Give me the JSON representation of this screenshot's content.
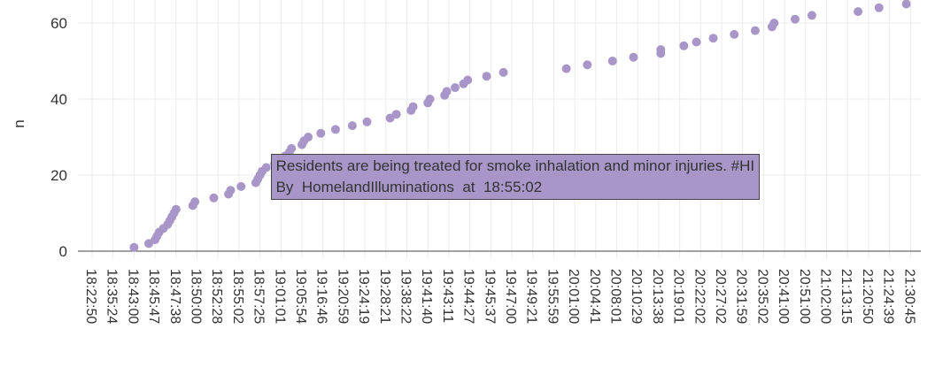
{
  "chart_data": {
    "type": "scatter",
    "ylabel": "n",
    "y_ticks": [
      0,
      20,
      40,
      60
    ],
    "ylim": [
      -2,
      66
    ],
    "x_ticks": [
      "18:22:50",
      "18:35:24",
      "18:43:00",
      "18:45:47",
      "18:47:38",
      "18:50:00",
      "18:52:28",
      "18:55:02",
      "18:57:25",
      "19:01:01",
      "19:05:54",
      "19:16:46",
      "19:20:59",
      "19:24:19",
      "19:28:21",
      "19:38:22",
      "19:41:40",
      "19:43:11",
      "19:44:27",
      "19:45:37",
      "19:47:00",
      "19:49:21",
      "19:55:59",
      "20:01:00",
      "20:04:41",
      "20:08:01",
      "20:10:29",
      "20:13:38",
      "20:19:01",
      "20:22:02",
      "20:27:02",
      "20:31:59",
      "20:35:02",
      "20:41:00",
      "20:51:00",
      "21:02:00",
      "21:13:15",
      "21:20:50",
      "21:24:39",
      "21:30:45"
    ],
    "marker_color": "#a896c9",
    "points": [
      {
        "x": 2.0,
        "y": 1
      },
      {
        "x": 2.7,
        "y": 2
      },
      {
        "x": 3.0,
        "y": 3
      },
      {
        "x": 3.1,
        "y": 4
      },
      {
        "x": 3.2,
        "y": 5
      },
      {
        "x": 3.4,
        "y": 6
      },
      {
        "x": 3.6,
        "y": 7
      },
      {
        "x": 3.7,
        "y": 8
      },
      {
        "x": 3.8,
        "y": 9
      },
      {
        "x": 3.9,
        "y": 10
      },
      {
        "x": 4.0,
        "y": 11
      },
      {
        "x": 4.8,
        "y": 12
      },
      {
        "x": 4.9,
        "y": 13
      },
      {
        "x": 5.8,
        "y": 14
      },
      {
        "x": 6.5,
        "y": 15
      },
      {
        "x": 6.6,
        "y": 16
      },
      {
        "x": 7.1,
        "y": 17
      },
      {
        "x": 7.8,
        "y": 18
      },
      {
        "x": 7.9,
        "y": 19
      },
      {
        "x": 8.0,
        "y": 20
      },
      {
        "x": 8.1,
        "y": 21
      },
      {
        "x": 8.3,
        "y": 22
      },
      {
        "x": 8.7,
        "y": 23
      },
      {
        "x": 9.0,
        "y": 24
      },
      {
        "x": 9.2,
        "y": 25
      },
      {
        "x": 9.4,
        "y": 26
      },
      {
        "x": 9.5,
        "y": 27
      },
      {
        "x": 10.0,
        "y": 28
      },
      {
        "x": 10.1,
        "y": 29
      },
      {
        "x": 10.3,
        "y": 30
      },
      {
        "x": 10.9,
        "y": 31
      },
      {
        "x": 11.6,
        "y": 32
      },
      {
        "x": 12.4,
        "y": 33
      },
      {
        "x": 13.1,
        "y": 34
      },
      {
        "x": 14.2,
        "y": 35
      },
      {
        "x": 14.5,
        "y": 36
      },
      {
        "x": 15.2,
        "y": 37
      },
      {
        "x": 15.3,
        "y": 38
      },
      {
        "x": 16.0,
        "y": 39
      },
      {
        "x": 16.1,
        "y": 40
      },
      {
        "x": 16.8,
        "y": 41
      },
      {
        "x": 16.9,
        "y": 42
      },
      {
        "x": 17.3,
        "y": 43
      },
      {
        "x": 17.7,
        "y": 44
      },
      {
        "x": 17.9,
        "y": 45
      },
      {
        "x": 18.8,
        "y": 46
      },
      {
        "x": 19.6,
        "y": 47
      },
      {
        "x": 22.6,
        "y": 48
      },
      {
        "x": 23.6,
        "y": 49
      },
      {
        "x": 24.8,
        "y": 50
      },
      {
        "x": 25.8,
        "y": 51
      },
      {
        "x": 27.1,
        "y": 52
      },
      {
        "x": 27.1,
        "y": 53
      },
      {
        "x": 28.2,
        "y": 54
      },
      {
        "x": 28.8,
        "y": 55
      },
      {
        "x": 29.6,
        "y": 56
      },
      {
        "x": 30.6,
        "y": 57
      },
      {
        "x": 31.6,
        "y": 58
      },
      {
        "x": 32.4,
        "y": 59
      },
      {
        "x": 32.5,
        "y": 60
      },
      {
        "x": 33.5,
        "y": 61
      },
      {
        "x": 34.3,
        "y": 62
      },
      {
        "x": 36.5,
        "y": 63
      },
      {
        "x": 37.5,
        "y": 64
      },
      {
        "x": 38.8,
        "y": 65
      }
    ],
    "hover": {
      "point_index": 19,
      "text": "Residents are being treated for smoke inhalation and minor injuries. #HI",
      "by_label": "By",
      "user": "HomelandIlluminations",
      "at_label": "at",
      "time": "18:55:02"
    }
  }
}
